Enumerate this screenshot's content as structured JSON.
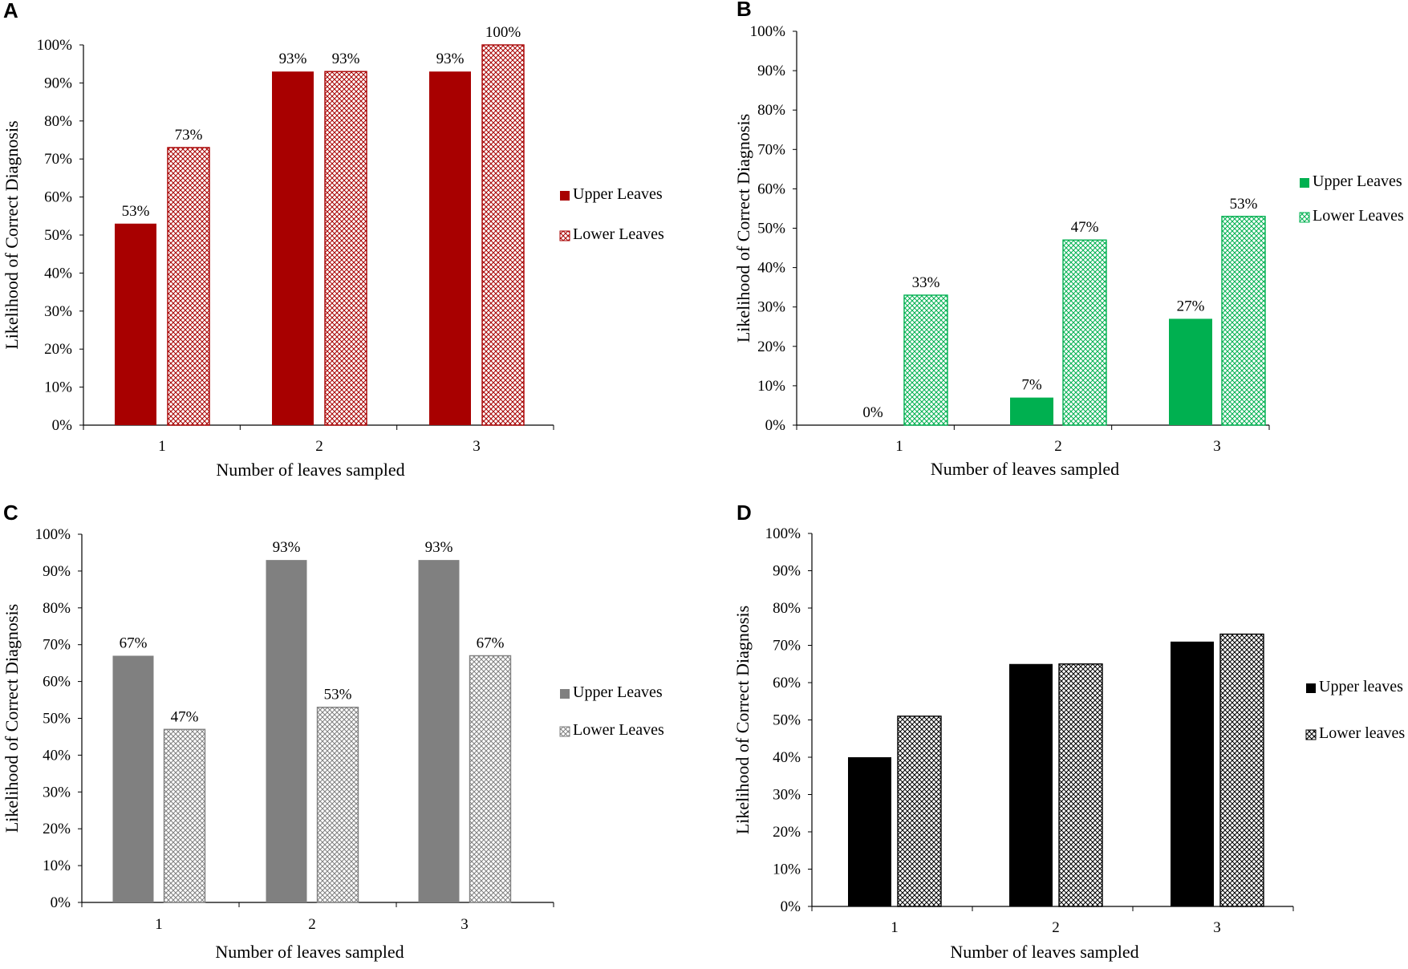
{
  "chart_data": [
    {
      "panel": "A",
      "type": "bar",
      "categories": [
        "1",
        "2",
        "3"
      ],
      "series": [
        {
          "name": "Upper Leaves",
          "values": [
            53,
            93,
            93
          ],
          "labels": [
            "53%",
            "93%",
            "93%"
          ],
          "pattern": "solid"
        },
        {
          "name": "Lower Leaves",
          "values": [
            73,
            93,
            100
          ],
          "labels": [
            "73%",
            "93%",
            "100%"
          ],
          "pattern": "crosshatch"
        }
      ],
      "color": "#a80000",
      "xlabel": "Number of leaves sampled",
      "ylabel": "Likelihood of Correct Diagnosis",
      "ylim": [
        0,
        100
      ],
      "yticks": [
        "0%",
        "10%",
        "20%",
        "30%",
        "40%",
        "50%",
        "60%",
        "70%",
        "80%",
        "90%",
        "100%"
      ],
      "legend_position": "right"
    },
    {
      "panel": "B",
      "type": "bar",
      "categories": [
        "1",
        "2",
        "3"
      ],
      "series": [
        {
          "name": "Upper Leaves",
          "values": [
            0,
            7,
            27
          ],
          "labels": [
            "0%",
            "7%",
            "27%"
          ],
          "pattern": "solid"
        },
        {
          "name": "Lower Leaves",
          "values": [
            33,
            47,
            53
          ],
          "labels": [
            "33%",
            "47%",
            "53%"
          ],
          "pattern": "crosshatch"
        }
      ],
      "color": "#00b050",
      "xlabel": "Number of leaves sampled",
      "ylabel": "Likelihood of Correct Diagnosis",
      "ylim": [
        0,
        100
      ],
      "yticks": [
        "0%",
        "10%",
        "20%",
        "30%",
        "40%",
        "50%",
        "60%",
        "70%",
        "80%",
        "90%",
        "100%"
      ],
      "legend_position": "right"
    },
    {
      "panel": "C",
      "type": "bar",
      "categories": [
        "1",
        "2",
        "3"
      ],
      "series": [
        {
          "name": "Upper Leaves",
          "values": [
            67,
            93,
            93
          ],
          "labels": [
            "67%",
            "93%",
            "93%"
          ],
          "pattern": "solid"
        },
        {
          "name": "Lower Leaves",
          "values": [
            47,
            53,
            67
          ],
          "labels": [
            "47%",
            "53%",
            "67%"
          ],
          "pattern": "crosshatch"
        }
      ],
      "color": "#808080",
      "xlabel": "Number of leaves sampled",
      "ylabel": "Likelihood of Correct Diagnosis",
      "ylim": [
        0,
        100
      ],
      "yticks": [
        "0%",
        "10%",
        "20%",
        "30%",
        "40%",
        "50%",
        "60%",
        "70%",
        "80%",
        "90%",
        "100%"
      ],
      "legend_position": "right"
    },
    {
      "panel": "D",
      "type": "bar",
      "categories": [
        "1",
        "2",
        "3"
      ],
      "series": [
        {
          "name": "Upper leaves",
          "values": [
            40,
            65,
            71
          ],
          "labels": null,
          "pattern": "solid"
        },
        {
          "name": "Lower leaves",
          "values": [
            51,
            65,
            73
          ],
          "labels": null,
          "pattern": "crosshatch"
        }
      ],
      "color": "#000000",
      "xlabel": "Number of leaves sampled",
      "ylabel": "Likelihood  of  Correct Diagnosis",
      "ylim": [
        0,
        100
      ],
      "yticks": [
        "0%",
        "10%",
        "20%",
        "30%",
        "40%",
        "50%",
        "60%",
        "70%",
        "80%",
        "90%",
        "100%"
      ],
      "legend_position": "right"
    }
  ]
}
